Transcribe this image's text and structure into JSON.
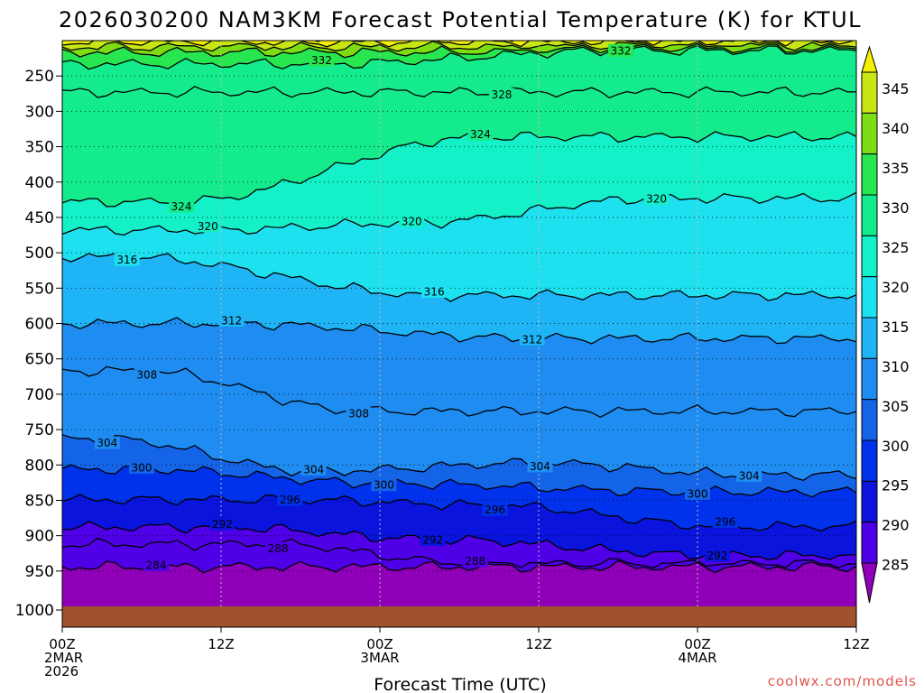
{
  "chart_data": {
    "type": "heatmap",
    "title": "2026030200 NAM3KM Forecast Potential Temperature (K) for KTUL",
    "xlabel": "Forecast Time (UTC)",
    "ylabel": "",
    "x_range_hours": [
      0,
      60
    ],
    "y_range_hpa": [
      200,
      1000
    ],
    "y_ticks": [
      250,
      300,
      350,
      400,
      450,
      500,
      550,
      600,
      650,
      700,
      750,
      800,
      850,
      900,
      950,
      1000
    ],
    "x_ticks": [
      {
        "hour": 0,
        "lines": [
          "00Z",
          "2MAR",
          "2026"
        ]
      },
      {
        "hour": 12,
        "lines": [
          "12Z"
        ]
      },
      {
        "hour": 24,
        "lines": [
          "00Z",
          "3MAR"
        ]
      },
      {
        "hour": 36,
        "lines": [
          "12Z"
        ]
      },
      {
        "hour": 48,
        "lines": [
          "00Z",
          "4MAR"
        ]
      },
      {
        "hour": 60,
        "lines": [
          "12Z"
        ]
      }
    ],
    "colorbar": {
      "levels": [
        285,
        290,
        295,
        300,
        305,
        310,
        315,
        320,
        325,
        330,
        335,
        340,
        345
      ],
      "colors": [
        "#7a10d8",
        "#5000e6",
        "#0a14dc",
        "#0032ec",
        "#1464e8",
        "#1e8cf0",
        "#1eb4f5",
        "#1ee1f0",
        "#14f0c8",
        "#14eb8c",
        "#28e650",
        "#7ddc14",
        "#c8e614",
        "#f5f000"
      ],
      "under_color": "#8f00b8",
      "over_color": "#f5f000"
    },
    "ground_color": "#a0522d",
    "isotherm_labels": [
      {
        "value": 332,
        "positions": [
          [
            19.6,
            233
          ],
          [
            42.2,
            214
          ]
        ]
      },
      {
        "value": 328,
        "positions": [
          [
            33.2,
            273
          ]
        ]
      },
      {
        "value": 324,
        "positions": [
          [
            9.0,
            428
          ],
          [
            31.6,
            336
          ]
        ]
      },
      {
        "value": 320,
        "positions": [
          [
            11.0,
            468
          ],
          [
            26.4,
            458
          ],
          [
            44.9,
            423
          ]
        ]
      },
      {
        "value": 316,
        "positions": [
          [
            4.9,
            506
          ],
          [
            28.1,
            560
          ]
        ]
      },
      {
        "value": 312,
        "positions": [
          [
            12.8,
            600
          ],
          [
            35.5,
            621
          ]
        ]
      },
      {
        "value": 308,
        "positions": [
          [
            6.4,
            667
          ],
          [
            22.4,
            724
          ]
        ]
      },
      {
        "value": 304,
        "positions": [
          [
            3.4,
            763
          ],
          [
            19.0,
            809
          ],
          [
            36.1,
            797
          ],
          [
            51.9,
            814
          ]
        ]
      },
      {
        "value": 300,
        "positions": [
          [
            6.0,
            806
          ],
          [
            24.3,
            826
          ],
          [
            48.0,
            838
          ]
        ]
      },
      {
        "value": 296,
        "positions": [
          [
            17.2,
            849
          ],
          [
            32.7,
            857
          ],
          [
            50.1,
            887
          ]
        ]
      },
      {
        "value": 292,
        "positions": [
          [
            12.1,
            888
          ],
          [
            28.0,
            905
          ],
          [
            49.5,
            928
          ]
        ]
      },
      {
        "value": 288,
        "positions": [
          [
            16.3,
            912
          ],
          [
            31.2,
            941
          ]
        ]
      },
      {
        "value": 284,
        "positions": [
          [
            7.1,
            944
          ]
        ]
      }
    ]
  },
  "credit": "coolwx.com/models"
}
